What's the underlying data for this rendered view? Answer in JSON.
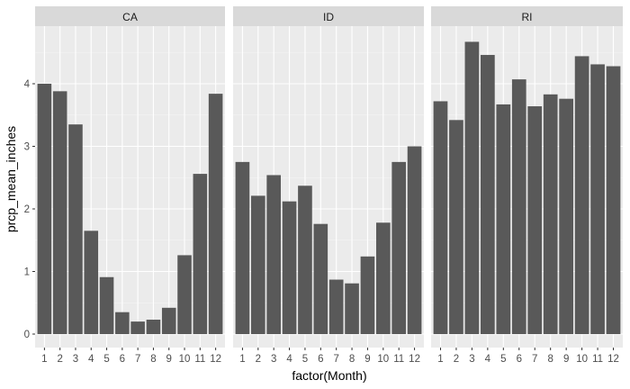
{
  "chart_data": {
    "type": "bar",
    "xlabel": "factor(Month)",
    "ylabel": "prcp_mean_inches",
    "ylim": [
      0,
      4.8
    ],
    "y_ticks": [
      0,
      1,
      2,
      3,
      4
    ],
    "categories": [
      "1",
      "2",
      "3",
      "4",
      "5",
      "6",
      "7",
      "8",
      "9",
      "10",
      "11",
      "12"
    ],
    "grid": true,
    "legend": "none",
    "facets": [
      {
        "label": "CA",
        "values": [
          4.0,
          3.88,
          3.35,
          1.65,
          0.91,
          0.35,
          0.2,
          0.23,
          0.42,
          1.26,
          2.56,
          3.84
        ]
      },
      {
        "label": "ID",
        "values": [
          2.75,
          2.21,
          2.54,
          2.12,
          2.37,
          1.76,
          0.87,
          0.81,
          1.24,
          1.78,
          2.75,
          3.0
        ]
      },
      {
        "label": "RI",
        "values": [
          3.72,
          3.42,
          4.67,
          4.46,
          3.67,
          4.07,
          3.64,
          3.83,
          3.76,
          4.44,
          4.31,
          4.28
        ]
      }
    ]
  },
  "colors": {
    "bar": "#595959",
    "panel": "#ebebeb",
    "strip": "#d9d9d9",
    "grid_major": "#ffffff",
    "grid_minor": "#f5f5f5",
    "tick": "#333333"
  }
}
